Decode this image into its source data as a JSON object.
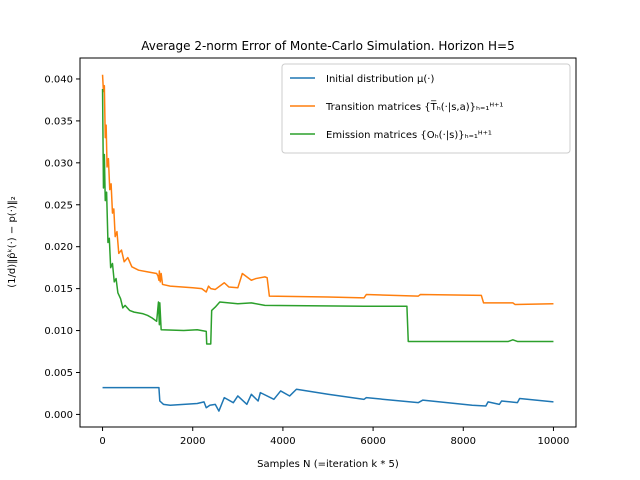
{
  "chart_data": {
    "type": "line",
    "title": "Average 2-norm Error of Monte-Carlo Simulation. Horizon H=5",
    "xlabel": "Samples N (=iteration k * 5)",
    "ylabel": "(1/d)‖p̂ᵏ(·) − p(·)‖₂",
    "xlim": [
      -500,
      10500
    ],
    "ylim": [
      -0.0015,
      0.0425
    ],
    "xticks": [
      0,
      2000,
      4000,
      6000,
      8000,
      10000
    ],
    "yticks": [
      0.0,
      0.005,
      0.01,
      0.015,
      0.02,
      0.025,
      0.03,
      0.035,
      0.04
    ],
    "ytick_labels": [
      "0.000",
      "0.005",
      "0.010",
      "0.015",
      "0.020",
      "0.025",
      "0.030",
      "0.035",
      "0.040"
    ],
    "legend_position": "top-right",
    "series": [
      {
        "name": "Initial distribution μ(·)",
        "color": "#1f77b4",
        "points": [
          [
            0,
            0.0032
          ],
          [
            1250,
            0.0032
          ],
          [
            1270,
            0.0016
          ],
          [
            1350,
            0.0012
          ],
          [
            1500,
            0.0011
          ],
          [
            1800,
            0.0012
          ],
          [
            2100,
            0.0013
          ],
          [
            2250,
            0.0015
          ],
          [
            2300,
            0.0008
          ],
          [
            2380,
            0.0011
          ],
          [
            2500,
            0.0012
          ],
          [
            2580,
            0.0004
          ],
          [
            2700,
            0.002
          ],
          [
            2900,
            0.0014
          ],
          [
            3000,
            0.0022
          ],
          [
            3200,
            0.0012
          ],
          [
            3300,
            0.0024
          ],
          [
            3450,
            0.0016
          ],
          [
            3500,
            0.0026
          ],
          [
            3800,
            0.0018
          ],
          [
            3950,
            0.0028
          ],
          [
            4150,
            0.0022
          ],
          [
            4300,
            0.003
          ],
          [
            5000,
            0.0024
          ],
          [
            5800,
            0.0018
          ],
          [
            5850,
            0.002
          ],
          [
            7000,
            0.0014
          ],
          [
            7100,
            0.0017
          ],
          [
            8200,
            0.0011
          ],
          [
            8500,
            0.001
          ],
          [
            8550,
            0.0015
          ],
          [
            8800,
            0.0012
          ],
          [
            8850,
            0.0016
          ],
          [
            9200,
            0.0014
          ],
          [
            9250,
            0.0019
          ],
          [
            10000,
            0.0015
          ]
        ]
      },
      {
        "name": "Transition matrices {T̅ₕ(·|s,a)}ₕ₌₁ᴴ⁺¹",
        "color": "#ff7f0e",
        "points": [
          [
            0,
            0.0405
          ],
          [
            20,
            0.0385
          ],
          [
            40,
            0.0392
          ],
          [
            60,
            0.033
          ],
          [
            80,
            0.0345
          ],
          [
            100,
            0.0295
          ],
          [
            130,
            0.0305
          ],
          [
            160,
            0.0268
          ],
          [
            190,
            0.0275
          ],
          [
            220,
            0.024
          ],
          [
            250,
            0.0245
          ],
          [
            280,
            0.0212
          ],
          [
            320,
            0.0218
          ],
          [
            360,
            0.0192
          ],
          [
            420,
            0.0196
          ],
          [
            480,
            0.0182
          ],
          [
            560,
            0.0187
          ],
          [
            650,
            0.0176
          ],
          [
            800,
            0.0172
          ],
          [
            1000,
            0.017
          ],
          [
            1200,
            0.0168
          ],
          [
            1230,
            0.0165
          ],
          [
            1250,
            0.016
          ],
          [
            1260,
            0.0171
          ],
          [
            1280,
            0.0158
          ],
          [
            1300,
            0.0168
          ],
          [
            1330,
            0.0155
          ],
          [
            1500,
            0.0153
          ],
          [
            2000,
            0.0151
          ],
          [
            2200,
            0.015
          ],
          [
            2300,
            0.0146
          ],
          [
            2350,
            0.0153
          ],
          [
            2400,
            0.015
          ],
          [
            2500,
            0.0149
          ],
          [
            2700,
            0.0157
          ],
          [
            2800,
            0.0152
          ],
          [
            3000,
            0.0151
          ],
          [
            3100,
            0.0168
          ],
          [
            3300,
            0.016
          ],
          [
            3400,
            0.0162
          ],
          [
            3600,
            0.0164
          ],
          [
            3650,
            0.0163
          ],
          [
            3700,
            0.0141
          ],
          [
            5000,
            0.014
          ],
          [
            5800,
            0.0139
          ],
          [
            5850,
            0.0143
          ],
          [
            7000,
            0.0141
          ],
          [
            7050,
            0.0143
          ],
          [
            8400,
            0.0142
          ],
          [
            8450,
            0.0133
          ],
          [
            9100,
            0.0133
          ],
          [
            9150,
            0.0131
          ],
          [
            10000,
            0.0132
          ]
        ]
      },
      {
        "name": "Emission matrices {Oₕ(·|s)}ₕ₌₁ᴴ⁺¹",
        "color": "#2ca02c",
        "points": [
          [
            0,
            0.0388
          ],
          [
            20,
            0.027
          ],
          [
            40,
            0.031
          ],
          [
            60,
            0.0255
          ],
          [
            90,
            0.0265
          ],
          [
            120,
            0.0205
          ],
          [
            150,
            0.021
          ],
          [
            180,
            0.0175
          ],
          [
            220,
            0.018
          ],
          [
            260,
            0.0158
          ],
          [
            300,
            0.0162
          ],
          [
            340,
            0.0145
          ],
          [
            400,
            0.0138
          ],
          [
            450,
            0.0127
          ],
          [
            500,
            0.013
          ],
          [
            600,
            0.0124
          ],
          [
            700,
            0.0122
          ],
          [
            900,
            0.012
          ],
          [
            1000,
            0.0118
          ],
          [
            1100,
            0.0115
          ],
          [
            1200,
            0.0111
          ],
          [
            1240,
            0.0134
          ],
          [
            1260,
            0.0107
          ],
          [
            1270,
            0.0133
          ],
          [
            1300,
            0.0101
          ],
          [
            1800,
            0.01
          ],
          [
            2100,
            0.0101
          ],
          [
            2300,
            0.0099
          ],
          [
            2310,
            0.0084
          ],
          [
            2400,
            0.0084
          ],
          [
            2420,
            0.0124
          ],
          [
            2500,
            0.0128
          ],
          [
            2600,
            0.0134
          ],
          [
            3000,
            0.0132
          ],
          [
            3300,
            0.0133
          ],
          [
            3600,
            0.013
          ],
          [
            5800,
            0.0129
          ],
          [
            6750,
            0.0129
          ],
          [
            6780,
            0.0087
          ],
          [
            9000,
            0.0087
          ],
          [
            9100,
            0.0089
          ],
          [
            9200,
            0.0087
          ],
          [
            10000,
            0.0087
          ]
        ]
      }
    ]
  }
}
